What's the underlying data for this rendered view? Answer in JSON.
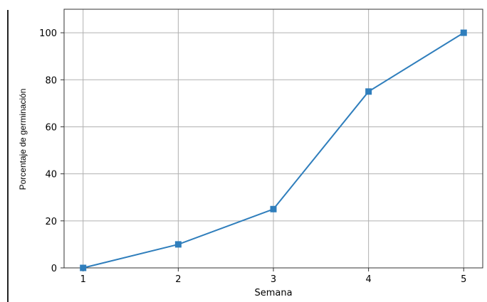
{
  "chart_data": {
    "type": "line",
    "title": "",
    "xlabel": "Semana",
    "ylabel": "Porcentaje de germinación",
    "x": [
      1,
      2,
      3,
      4,
      5
    ],
    "xticks": [
      1,
      2,
      3,
      4,
      5
    ],
    "yticks": [
      0,
      20,
      40,
      60,
      80,
      100
    ],
    "xlim": [
      0.8,
      5.2
    ],
    "ylim": [
      0,
      110
    ],
    "grid": true,
    "legend": "none",
    "marker": "square",
    "series": [
      {
        "values": [
          0,
          10,
          25,
          75,
          100
        ],
        "color": "#2f7ebc"
      }
    ]
  }
}
